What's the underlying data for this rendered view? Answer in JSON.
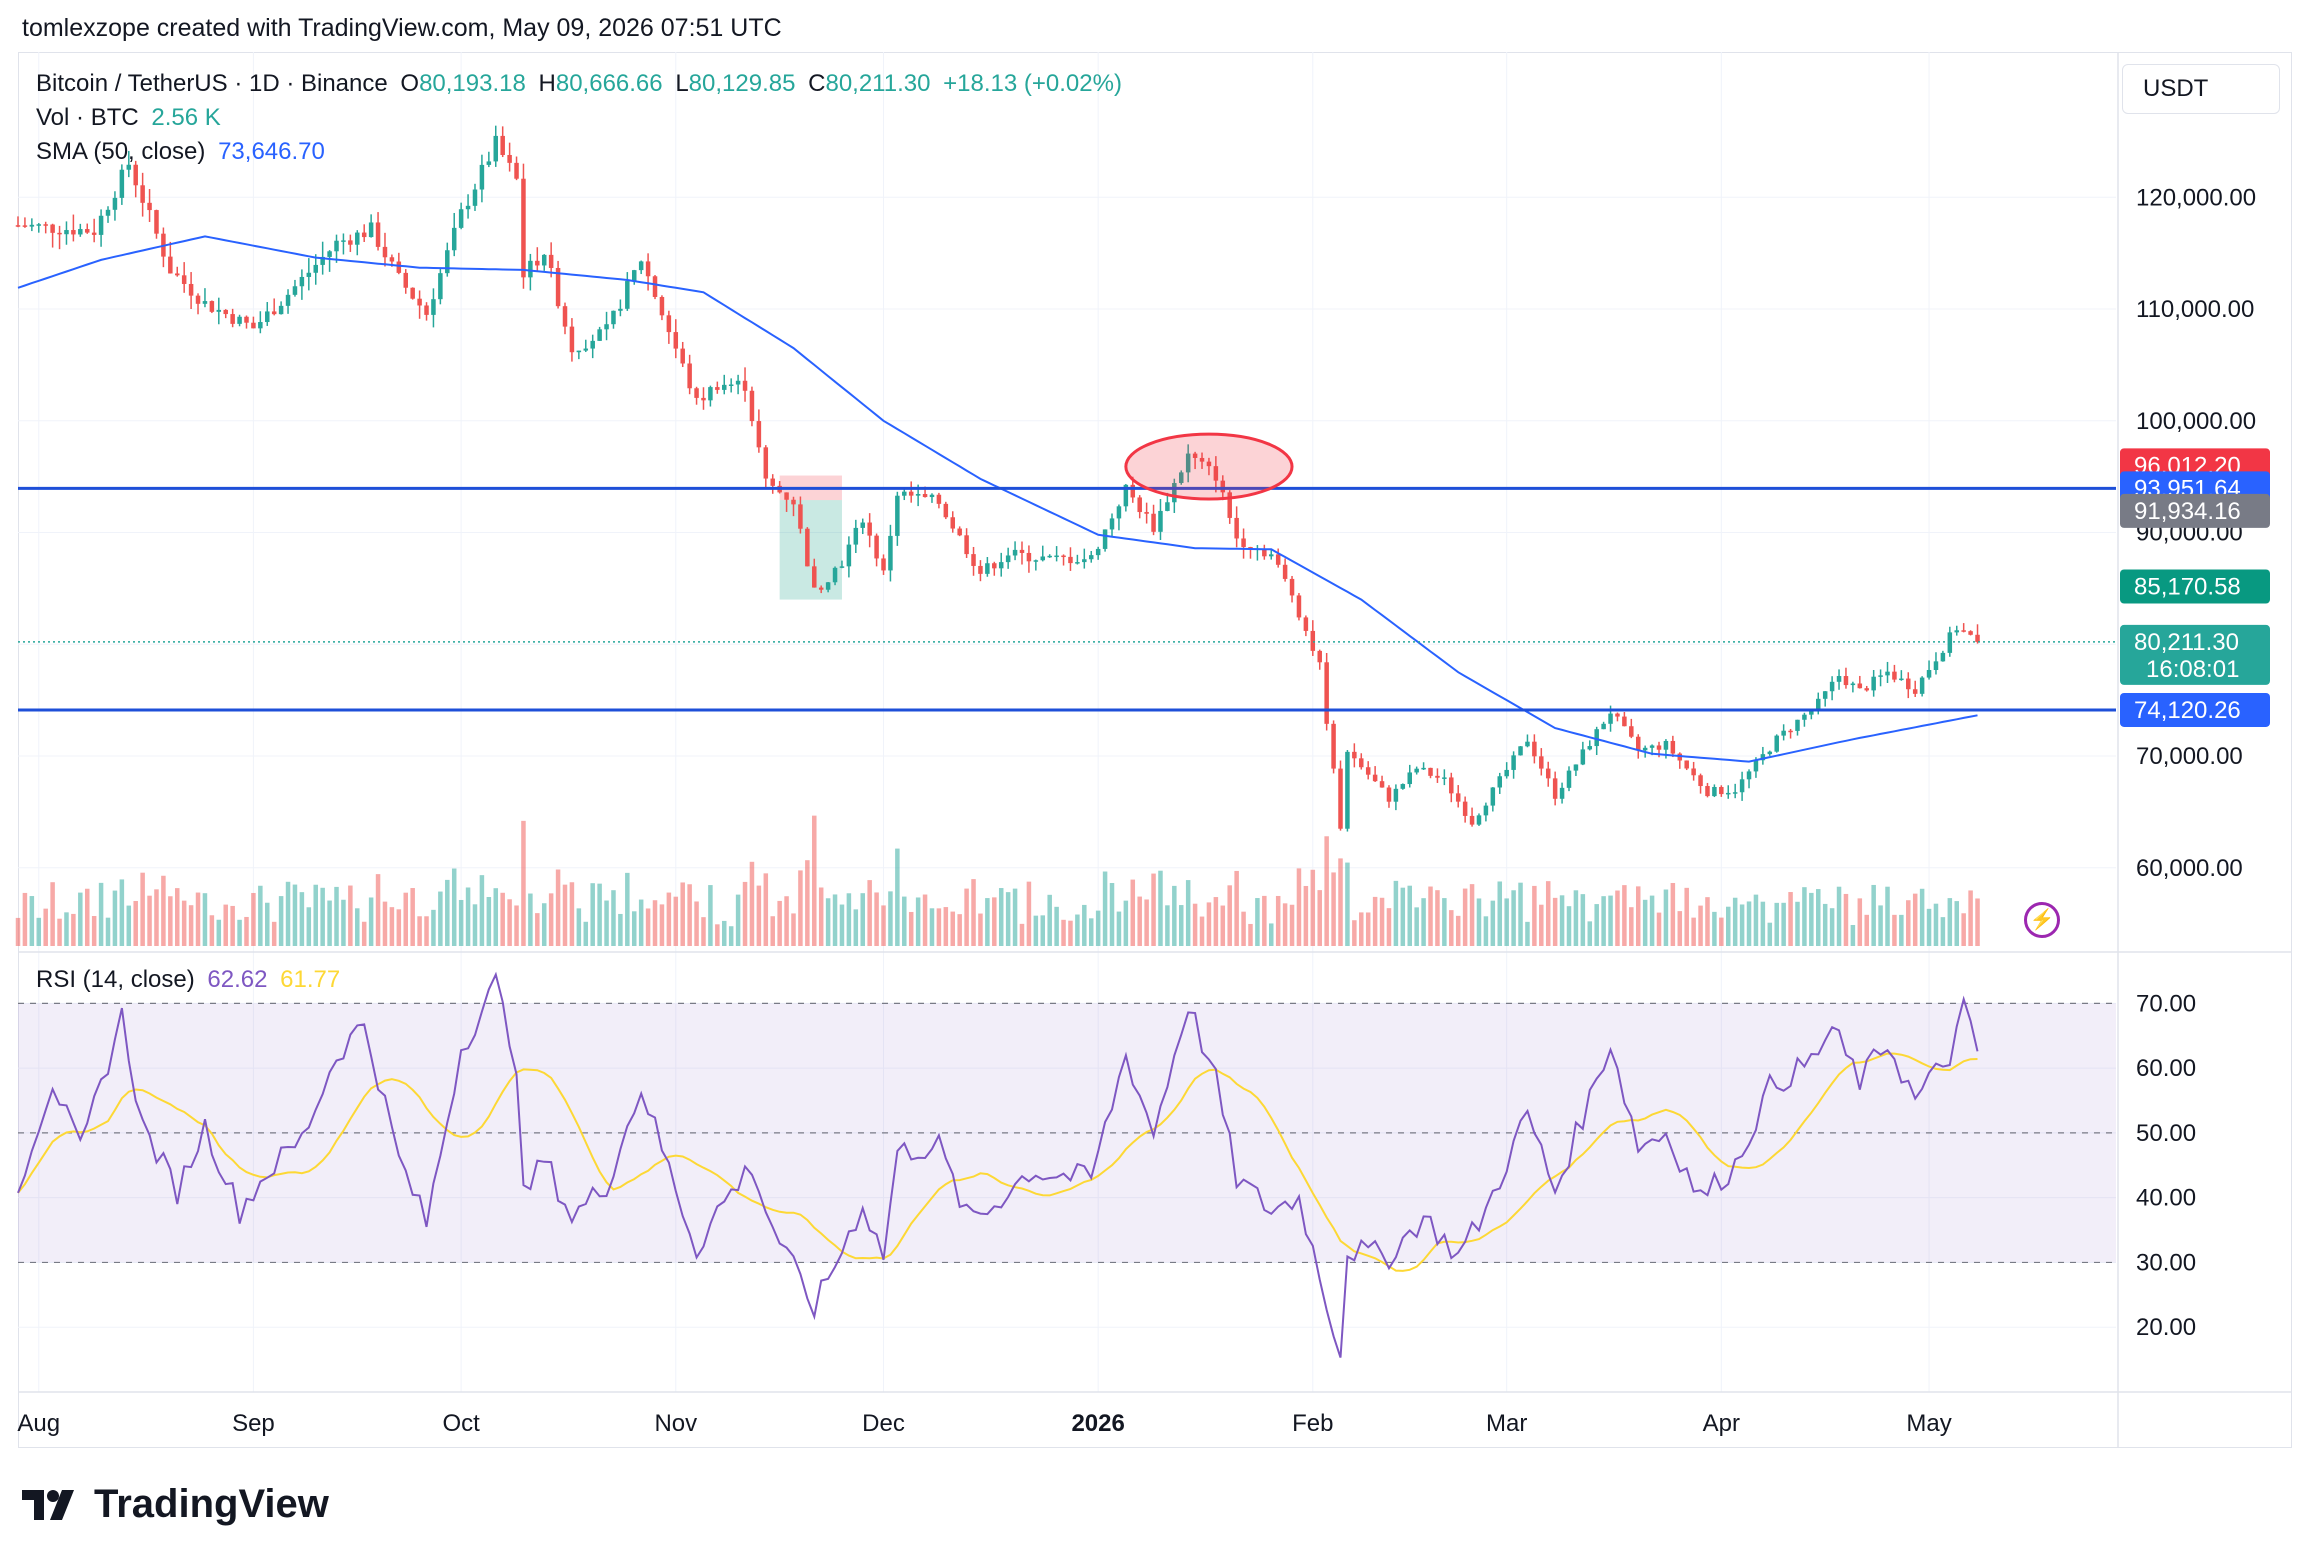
{
  "header": {
    "attribution": "tomlexzope created with TradingView.com, May 09, 2026 07:51 UTC"
  },
  "legend": {
    "symbol": "Bitcoin / TetherUS · 1D · Binance",
    "o_label": "O",
    "o": "80,193.18",
    "h_label": "H",
    "h": "80,666.66",
    "l_label": "L",
    "l": "80,129.85",
    "c_label": "C",
    "c": "80,211.30",
    "chg": "+18.13 (+0.02%)",
    "vol_label": "Vol · BTC",
    "vol": "2.56 K",
    "sma_label": "SMA (50, close)",
    "sma": "73,646.70",
    "rsi_label": "RSI (14, close)",
    "rsi": "62.62",
    "rsi_ma": "61.77"
  },
  "currency_button": "USDT",
  "brand": "TradingView",
  "colors": {
    "up": "#26a69a",
    "down": "#ef5350",
    "sma": "#2962ff",
    "hline": "#1e4fd8",
    "rsi": "#7e57c2",
    "rsi_ma": "#fdd835",
    "ellipse": "#f23645"
  },
  "chart_data": {
    "type": "candlestick",
    "price_axis": {
      "ticks": [
        60000,
        70000,
        80000,
        90000,
        100000,
        110000,
        120000
      ],
      "tick_labels": [
        "60,000.00",
        "70,000.00",
        "80,000.00",
        "90,000.00",
        "100,000.00",
        "110,000.00",
        "120,000.00"
      ],
      "range": [
        53000,
        133000
      ]
    },
    "time_axis": {
      "labels": [
        "Aug",
        "Sep",
        "Oct",
        "Nov",
        "Dec",
        "2026",
        "Feb",
        "Mar",
        "Apr",
        "May"
      ],
      "label_dates": [
        "2025-08-01",
        "2025-09-01",
        "2025-10-01",
        "2025-11-01",
        "2025-12-01",
        "2026-01-01",
        "2026-02-01",
        "2026-03-01",
        "2026-04-01",
        "2026-05-01"
      ],
      "range": [
        "2025-07-29",
        "2026-05-28"
      ]
    },
    "price_anchors": [
      [
        "2025-07-29",
        117500
      ],
      [
        "2025-08-09",
        117000
      ],
      [
        "2025-08-14",
        123000
      ],
      [
        "2025-08-20",
        113500
      ],
      [
        "2025-08-25",
        110500
      ],
      [
        "2025-09-01",
        108300
      ],
      [
        "2025-09-05",
        110700
      ],
      [
        "2025-09-13",
        115900
      ],
      [
        "2025-09-18",
        117100
      ],
      [
        "2025-09-22",
        112700
      ],
      [
        "2025-09-26",
        109600
      ],
      [
        "2025-10-01",
        118500
      ],
      [
        "2025-10-06",
        124800
      ],
      [
        "2025-10-09",
        121500
      ],
      [
        "2025-10-10",
        113000
      ],
      [
        "2025-10-13",
        115200
      ],
      [
        "2025-10-17",
        106500
      ],
      [
        "2025-10-22",
        108000
      ],
      [
        "2025-10-27",
        114500
      ],
      [
        "2025-11-04",
        101600
      ],
      [
        "2025-11-07",
        103300
      ],
      [
        "2025-11-11",
        103200
      ],
      [
        "2025-11-14",
        94500
      ],
      [
        "2025-11-18",
        92800
      ],
      [
        "2025-11-21",
        84700
      ],
      [
        "2025-11-25",
        87400
      ],
      [
        "2025-11-28",
        91300
      ],
      [
        "2025-12-01",
        86300
      ],
      [
        "2025-12-03",
        93500
      ],
      [
        "2025-12-09",
        92700
      ],
      [
        "2025-12-15",
        86400
      ],
      [
        "2025-12-19",
        88100
      ],
      [
        "2025-12-25",
        87600
      ],
      [
        "2025-12-31",
        87700
      ],
      [
        "2026-01-05",
        93900
      ],
      [
        "2026-01-09",
        90500
      ],
      [
        "2026-01-14",
        96900
      ],
      [
        "2026-01-18",
        95100
      ],
      [
        "2026-01-21",
        89500
      ],
      [
        "2026-01-26",
        88000
      ],
      [
        "2026-01-29",
        84500
      ],
      [
        "2026-02-02",
        78000
      ],
      [
        "2026-02-05",
        63800
      ],
      [
        "2026-02-06",
        70500
      ],
      [
        "2026-02-12",
        66200
      ],
      [
        "2026-02-16",
        68900
      ],
      [
        "2026-02-20",
        67800
      ],
      [
        "2026-02-24",
        64100
      ],
      [
        "2026-03-04",
        71500
      ],
      [
        "2026-03-08",
        66500
      ],
      [
        "2026-03-16",
        74000
      ],
      [
        "2026-03-20",
        70500
      ],
      [
        "2026-03-24",
        71000
      ],
      [
        "2026-03-30",
        66800
      ],
      [
        "2026-04-03",
        67000
      ],
      [
        "2026-04-09",
        71500
      ],
      [
        "2026-04-15",
        74700
      ],
      [
        "2026-04-18",
        77200
      ],
      [
        "2026-04-21",
        75800
      ],
      [
        "2026-04-25",
        77500
      ],
      [
        "2026-04-29",
        76000
      ],
      [
        "2026-05-02",
        78800
      ],
      [
        "2026-05-05",
        81500
      ],
      [
        "2026-05-08",
        80211
      ]
    ],
    "sma50_anchors": [
      [
        "2025-07-29",
        111900
      ],
      [
        "2025-08-10",
        114400
      ],
      [
        "2025-08-25",
        116500
      ],
      [
        "2025-09-10",
        114600
      ],
      [
        "2025-09-25",
        113700
      ],
      [
        "2025-10-10",
        113500
      ],
      [
        "2025-10-25",
        112600
      ],
      [
        "2025-11-05",
        111500
      ],
      [
        "2025-11-18",
        106500
      ],
      [
        "2025-12-01",
        100000
      ],
      [
        "2025-12-15",
        94800
      ],
      [
        "2026-01-01",
        89800
      ],
      [
        "2026-01-15",
        88600
      ],
      [
        "2026-01-26",
        88500
      ],
      [
        "2026-02-08",
        84000
      ],
      [
        "2026-02-22",
        77500
      ],
      [
        "2026-03-08",
        72500
      ],
      [
        "2026-03-22",
        70200
      ],
      [
        "2026-04-05",
        69500
      ],
      [
        "2026-04-20",
        71500
      ],
      [
        "2026-05-08",
        73647
      ]
    ],
    "volume_axis": {
      "range": [
        0,
        14
      ]
    },
    "volume_spikes_k": [
      [
        "2025-10-10",
        12.0
      ],
      [
        "2025-11-21",
        12.5
      ],
      [
        "2026-02-05",
        8.4
      ],
      [
        "2026-02-06",
        8.0
      ]
    ],
    "horizontal_lines": [
      93951.64,
      74120.26
    ],
    "position_tool": {
      "start": "2025-11-16",
      "end": "2025-11-25",
      "entry": 92900,
      "stop": 95100,
      "target": 84000
    },
    "ellipse": {
      "start": "2026-01-05",
      "end": "2026-01-29",
      "low": 93000,
      "high": 98800
    },
    "price_labels": [
      {
        "value": "96,012.20",
        "price": 96012.2,
        "color": "#f23645"
      },
      {
        "value": "93,951.64",
        "price": 93951.64,
        "color": "#2962ff"
      },
      {
        "value": "91,934.16",
        "price": 91934.16,
        "color": "#787b86"
      },
      {
        "value": "85,170.58",
        "price": 85170.58,
        "color": "#089981"
      },
      {
        "value": "80,211.30",
        "sub": "16:08:01",
        "price": 80211.3,
        "color": "#26a69a"
      },
      {
        "value": "74,120.26",
        "price": 74120.26,
        "color": "#2962ff"
      }
    ],
    "last_price": 80211.3,
    "rsi": {
      "ticks": [
        20,
        30,
        40,
        50,
        60,
        70
      ],
      "tick_labels": [
        "20.00",
        "30.00",
        "40.00",
        "50.00",
        "60.00",
        "70.00"
      ],
      "range": [
        10,
        77
      ],
      "band": [
        30,
        70
      ],
      "anchors": [
        [
          "2025-07-29",
          42
        ],
        [
          "2025-08-03",
          58
        ],
        [
          "2025-08-07",
          47
        ],
        [
          "2025-08-13",
          68
        ],
        [
          "2025-08-16",
          51
        ],
        [
          "2025-08-21",
          41
        ],
        [
          "2025-08-25",
          51
        ],
        [
          "2025-08-30",
          38
        ],
        [
          "2025-09-03",
          44
        ],
        [
          "2025-09-08",
          49
        ],
        [
          "2025-09-13",
          62
        ],
        [
          "2025-09-17",
          67
        ],
        [
          "2025-09-22",
          46
        ],
        [
          "2025-09-26",
          36
        ],
        [
          "2025-10-01",
          63
        ],
        [
          "2025-10-06",
          73
        ],
        [
          "2025-10-09",
          61
        ],
        [
          "2025-10-10",
          40
        ],
        [
          "2025-10-13",
          46
        ],
        [
          "2025-10-17",
          37
        ],
        [
          "2025-10-22",
          42
        ],
        [
          "2025-10-27",
          57
        ],
        [
          "2025-11-04",
          32
        ],
        [
          "2025-11-07",
          38
        ],
        [
          "2025-11-12",
          45
        ],
        [
          "2025-11-14",
          38
        ],
        [
          "2025-11-17",
          31
        ],
        [
          "2025-11-21",
          23
        ],
        [
          "2025-11-25",
          32
        ],
        [
          "2025-11-28",
          39
        ],
        [
          "2025-12-01",
          31
        ],
        [
          "2025-12-03",
          47
        ],
        [
          "2025-12-09",
          48
        ],
        [
          "2025-12-13",
          37
        ],
        [
          "2025-12-16",
          38
        ],
        [
          "2025-12-22",
          44
        ],
        [
          "2025-12-31",
          43
        ],
        [
          "2026-01-05",
          62
        ],
        [
          "2026-01-09",
          50
        ],
        [
          "2026-01-14",
          70
        ],
        [
          "2026-01-18",
          58
        ],
        [
          "2026-01-21",
          43
        ],
        [
          "2026-01-26",
          38
        ],
        [
          "2026-01-30",
          40
        ],
        [
          "2026-02-02",
          28
        ],
        [
          "2026-02-05",
          16
        ],
        [
          "2026-02-06",
          32
        ],
        [
          "2026-02-12",
          31
        ],
        [
          "2026-02-17",
          37
        ],
        [
          "2026-02-22",
          31
        ],
        [
          "2026-02-26",
          38
        ],
        [
          "2026-03-04",
          53
        ],
        [
          "2026-03-08",
          41
        ],
        [
          "2026-03-16",
          64
        ],
        [
          "2026-03-20",
          48
        ],
        [
          "2026-03-24",
          50
        ],
        [
          "2026-03-29",
          40
        ],
        [
          "2026-04-03",
          45
        ],
        [
          "2026-04-08",
          57
        ],
        [
          "2026-04-14",
          61
        ],
        [
          "2026-04-17",
          66
        ],
        [
          "2026-04-21",
          58
        ],
        [
          "2026-04-25",
          64
        ],
        [
          "2026-04-29",
          55
        ],
        [
          "2026-05-04",
          62
        ],
        [
          "2026-05-06",
          69
        ],
        [
          "2026-05-08",
          62.6
        ]
      ]
    }
  }
}
